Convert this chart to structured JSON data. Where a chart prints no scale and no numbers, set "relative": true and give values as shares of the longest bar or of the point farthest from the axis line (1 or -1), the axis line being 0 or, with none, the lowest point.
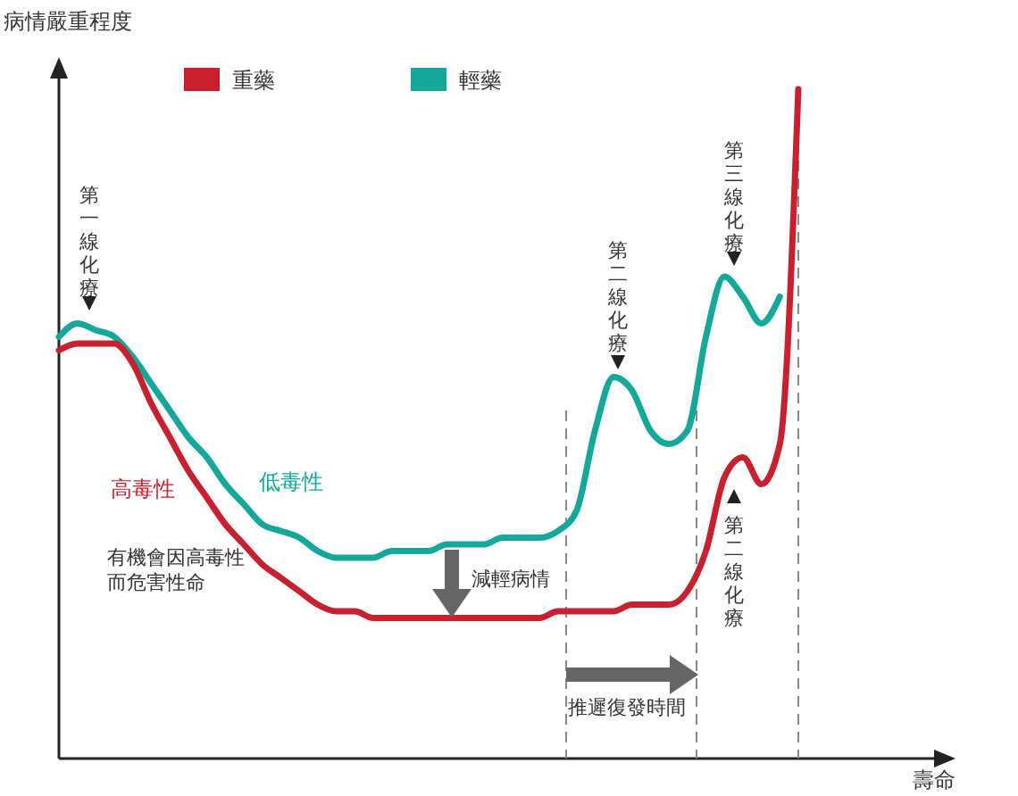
{
  "chart_data": {
    "type": "line",
    "relative": true,
    "ylabel": "病情嚴重程度",
    "xlabel": "壽命",
    "legend": "top",
    "marker": "none",
    "categories": [
      null,
      null,
      null,
      null,
      null,
      null,
      null,
      null,
      null,
      null,
      null,
      null,
      null,
      null,
      null,
      null,
      null,
      null,
      null,
      null,
      null,
      null,
      null,
      null,
      null,
      null,
      null,
      null,
      null,
      null,
      null,
      null,
      null,
      null,
      null,
      null,
      null,
      null,
      null,
      null,
      null
    ],
    "series": [
      {
        "name": "重藥",
        "color": "#c8202f",
        "values": [
          0.61,
          0.62,
          0.62,
          0.62,
          0.59,
          0.53,
          0.48,
          0.43,
          0.39,
          0.35,
          0.32,
          0.29,
          0.27,
          0.25,
          0.23,
          0.22,
          0.22,
          0.21,
          0.21,
          0.21,
          0.21,
          0.21,
          0.21,
          0.21,
          0.21,
          0.21,
          0.21,
          0.22,
          0.22,
          0.22,
          0.22,
          0.23,
          0.23,
          0.23,
          0.25,
          0.31,
          0.42,
          0.45,
          0.41,
          0.47,
          1
        ]
      },
      {
        "name": "輕藥",
        "color": "#14a89b",
        "values": [
          0.63,
          0.65,
          0.64,
          0.63,
          0.6,
          0.56,
          0.52,
          0.48,
          0.45,
          0.41,
          0.38,
          0.35,
          0.34,
          0.33,
          0.31,
          0.3,
          0.3,
          0.3,
          0.31,
          0.31,
          0.31,
          0.32,
          0.32,
          0.32,
          0.33,
          0.33,
          0.33,
          0.34,
          0.37,
          0.49,
          0.57,
          0.55,
          0.49,
          0.47,
          0.49,
          0.63,
          0.72,
          0.69,
          0.65,
          0.69,
          null
        ]
      }
    ],
    "annotations": [
      "第一線化療",
      "第二線化療",
      "第三線化療",
      "第二線化療",
      "高毒性",
      "低毒性",
      "有機會因高毒性而危害性命",
      "減輕病情",
      "推遲復發時間"
    ]
  }
}
